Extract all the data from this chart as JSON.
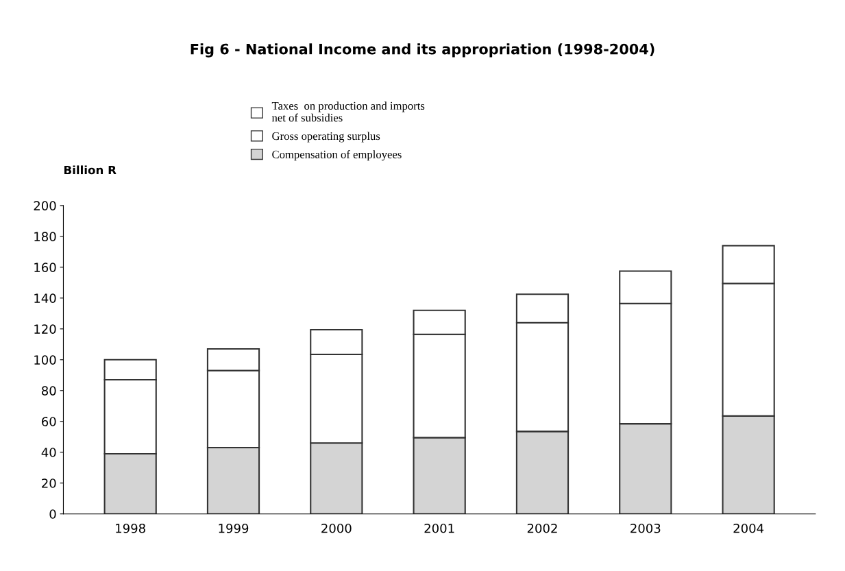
{
  "chart_data": {
    "type": "bar",
    "title": "Fig 6 - National Income and its appropriation (1998-2004)",
    "ylabel": "Billion R",
    "categories": [
      "1998",
      "1999",
      "2000",
      "2001",
      "2002",
      "2003",
      "2004"
    ],
    "stacked": true,
    "series": [
      {
        "name": "Compensation of employees",
        "color": "#d4d4d4",
        "values": [
          39,
          43,
          46,
          49.5,
          53.5,
          58.5,
          63.5
        ]
      },
      {
        "name": "Gross operating surplus",
        "color": "#ffffff",
        "values": [
          48,
          50,
          57.5,
          67,
          70.5,
          78,
          86
        ]
      },
      {
        "name": "Taxes  on production and imports\nnet of subsidies",
        "color": "#ffffff",
        "values": [
          13,
          14,
          16,
          15.5,
          18.5,
          21,
          24.5
        ]
      }
    ],
    "ylim": [
      0,
      200
    ],
    "yticks": [
      0,
      20,
      40,
      60,
      80,
      100,
      120,
      140,
      160,
      180,
      200
    ],
    "grid": false,
    "legend": "top"
  }
}
